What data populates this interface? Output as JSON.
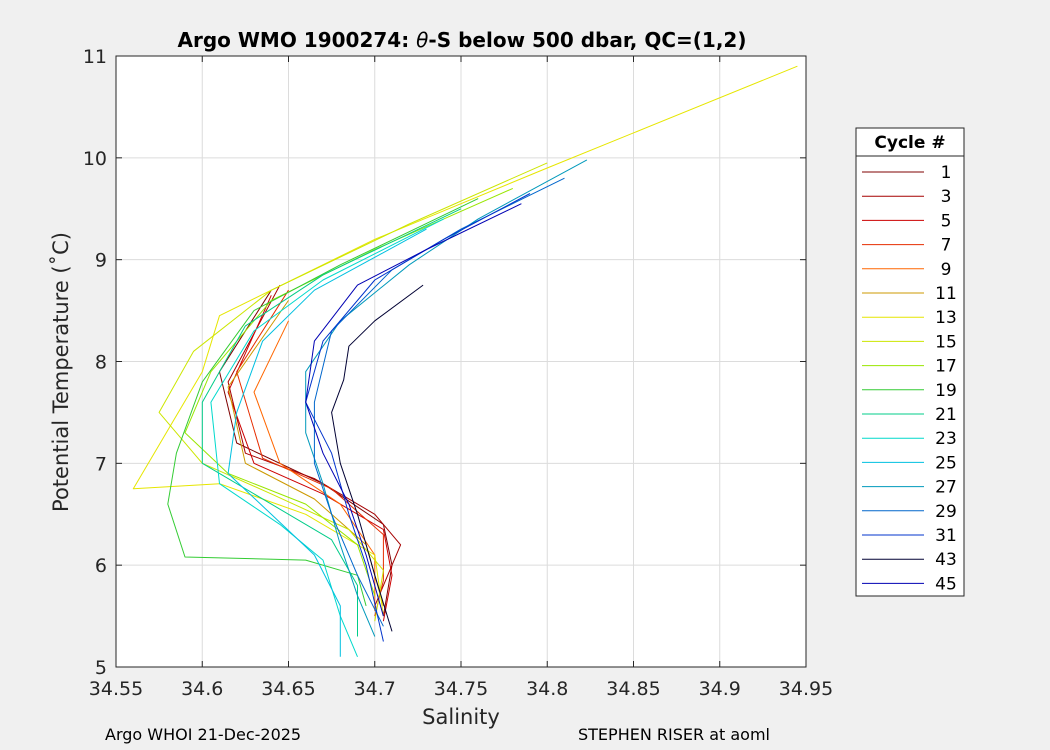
{
  "title_prefix": "Argo WMO 1900274: ",
  "title_symbol": "θ",
  "title_suffix": "-S below 500 dbar,  QC=(1,2)",
  "footer_left": "Argo WHOI 21-Dec-2025",
  "footer_right": "STEPHEN RISER at aoml",
  "chart_data": {
    "type": "line",
    "title": "Argo WMO 1900274: θ-S below 500 dbar,  QC=(1,2)",
    "xlabel": "Salinity",
    "ylabel": "Potential Temperature (˚C)",
    "xlim": [
      34.55,
      34.95
    ],
    "ylim": [
      5,
      11
    ],
    "xticks": [
      "34.55",
      "34.6",
      "34.65",
      "34.7",
      "34.75",
      "34.8",
      "34.85",
      "34.9",
      "34.95"
    ],
    "yticks": [
      "5",
      "6",
      "7",
      "8",
      "9",
      "10",
      "11"
    ],
    "grid": true,
    "legend": {
      "title": "Cycle #",
      "placement": "right"
    },
    "series": [
      {
        "name": "1",
        "color": "#7f0000",
        "points": [
          [
            34.64,
            8.7
          ],
          [
            34.61,
            7.9
          ],
          [
            34.62,
            7.2
          ],
          [
            34.67,
            6.8
          ],
          [
            34.705,
            6.4
          ],
          [
            34.71,
            6.0
          ],
          [
            34.705,
            5.5
          ]
        ]
      },
      {
        "name": "3",
        "color": "#a60000",
        "points": [
          [
            34.645,
            8.75
          ],
          [
            34.615,
            7.8
          ],
          [
            34.625,
            7.1
          ],
          [
            34.665,
            6.85
          ],
          [
            34.7,
            6.5
          ],
          [
            34.715,
            6.2
          ],
          [
            34.7,
            5.6
          ]
        ]
      },
      {
        "name": "5",
        "color": "#cc0000",
        "points": [
          [
            34.64,
            8.65
          ],
          [
            34.615,
            7.7
          ],
          [
            34.63,
            7.0
          ],
          [
            34.67,
            6.7
          ],
          [
            34.705,
            6.35
          ],
          [
            34.71,
            5.9
          ],
          [
            34.705,
            5.45
          ]
        ]
      },
      {
        "name": "7",
        "color": "#e62d00",
        "points": [
          [
            34.65,
            8.7
          ],
          [
            34.62,
            7.9
          ],
          [
            34.635,
            7.05
          ],
          [
            34.675,
            6.75
          ],
          [
            34.705,
            6.3
          ],
          [
            34.705,
            5.85
          ],
          [
            34.7,
            5.5
          ]
        ]
      },
      {
        "name": "9",
        "color": "#ff6600",
        "points": [
          [
            34.65,
            8.4
          ],
          [
            34.63,
            7.7
          ],
          [
            34.645,
            7.0
          ],
          [
            34.68,
            6.6
          ],
          [
            34.7,
            6.1
          ],
          [
            34.7,
            5.55
          ]
        ]
      },
      {
        "name": "11",
        "color": "#cc9900",
        "points": [
          [
            34.65,
            8.6
          ],
          [
            34.615,
            7.75
          ],
          [
            34.625,
            7.0
          ],
          [
            34.665,
            6.65
          ],
          [
            34.695,
            6.2
          ],
          [
            34.705,
            5.6
          ]
        ]
      },
      {
        "name": "13",
        "color": "#e6e600",
        "points": [
          [
            34.945,
            10.9
          ],
          [
            34.8,
            9.9
          ],
          [
            34.7,
            9.2
          ],
          [
            34.61,
            8.45
          ],
          [
            34.6,
            7.9
          ],
          [
            34.56,
            6.75
          ],
          [
            34.61,
            6.8
          ],
          [
            34.66,
            6.5
          ],
          [
            34.7,
            6.1
          ],
          [
            34.705,
            5.5
          ]
        ]
      },
      {
        "name": "15",
        "color": "#cce600",
        "points": [
          [
            34.8,
            9.95
          ],
          [
            34.72,
            9.35
          ],
          [
            34.64,
            8.7
          ],
          [
            34.595,
            8.1
          ],
          [
            34.575,
            7.5
          ],
          [
            34.6,
            7.0
          ],
          [
            34.64,
            6.7
          ],
          [
            34.685,
            6.35
          ],
          [
            34.705,
            5.95
          ],
          [
            34.7,
            5.45
          ]
        ]
      },
      {
        "name": "17",
        "color": "#99e600",
        "points": [
          [
            34.78,
            9.7
          ],
          [
            34.7,
            9.1
          ],
          [
            34.64,
            8.6
          ],
          [
            34.605,
            7.9
          ],
          [
            34.59,
            7.3
          ],
          [
            34.615,
            6.9
          ],
          [
            34.66,
            6.6
          ],
          [
            34.69,
            6.2
          ],
          [
            34.7,
            5.7
          ]
        ]
      },
      {
        "name": "19",
        "color": "#33cc33",
        "points": [
          [
            34.76,
            9.6
          ],
          [
            34.68,
            8.95
          ],
          [
            34.63,
            8.5
          ],
          [
            34.6,
            7.8
          ],
          [
            34.585,
            7.1
          ],
          [
            34.58,
            6.6
          ],
          [
            34.59,
            6.08
          ],
          [
            34.66,
            6.05
          ],
          [
            34.69,
            5.9
          ],
          [
            34.695,
            5.6
          ]
        ]
      },
      {
        "name": "21",
        "color": "#00cc88",
        "points": [
          [
            34.75,
            9.5
          ],
          [
            34.67,
            8.85
          ],
          [
            34.625,
            8.35
          ],
          [
            34.6,
            7.6
          ],
          [
            34.6,
            7.0
          ],
          [
            34.64,
            6.6
          ],
          [
            34.675,
            6.25
          ],
          [
            34.69,
            5.8
          ],
          [
            34.69,
            5.3
          ]
        ]
      },
      {
        "name": "23",
        "color": "#00d9cc",
        "points": [
          [
            34.74,
            9.4
          ],
          [
            34.67,
            8.8
          ],
          [
            34.63,
            8.3
          ],
          [
            34.605,
            7.6
          ],
          [
            34.61,
            6.8
          ],
          [
            34.645,
            6.4
          ],
          [
            34.67,
            6.05
          ],
          [
            34.68,
            5.5
          ],
          [
            34.69,
            5.1
          ]
        ]
      },
      {
        "name": "25",
        "color": "#00c0e0",
        "points": [
          [
            34.73,
            9.3
          ],
          [
            34.665,
            8.7
          ],
          [
            34.635,
            8.2
          ],
          [
            34.62,
            7.5
          ],
          [
            34.615,
            6.9
          ],
          [
            34.64,
            6.5
          ],
          [
            34.665,
            6.1
          ],
          [
            34.68,
            5.6
          ],
          [
            34.68,
            5.1
          ]
        ]
      },
      {
        "name": "27",
        "color": "#0099bb",
        "points": [
          [
            34.823,
            9.98
          ],
          [
            34.76,
            9.4
          ],
          [
            34.72,
            8.95
          ],
          [
            34.68,
            8.4
          ],
          [
            34.66,
            7.9
          ],
          [
            34.66,
            7.3
          ],
          [
            34.67,
            6.8
          ],
          [
            34.68,
            6.2
          ],
          [
            34.69,
            5.7
          ],
          [
            34.7,
            5.3
          ]
        ]
      },
      {
        "name": "29",
        "color": "#0066cc",
        "points": [
          [
            34.81,
            9.8
          ],
          [
            34.75,
            9.3
          ],
          [
            34.71,
            8.9
          ],
          [
            34.675,
            8.3
          ],
          [
            34.665,
            7.6
          ],
          [
            34.665,
            7.0
          ],
          [
            34.675,
            6.5
          ],
          [
            34.69,
            5.9
          ],
          [
            34.705,
            5.4
          ]
        ]
      },
      {
        "name": "31",
        "color": "#0033cc",
        "points": [
          [
            34.79,
            9.65
          ],
          [
            34.74,
            9.2
          ],
          [
            34.7,
            8.8
          ],
          [
            34.67,
            8.2
          ],
          [
            34.66,
            7.6
          ],
          [
            34.675,
            7.1
          ],
          [
            34.685,
            6.5
          ],
          [
            34.695,
            6.0
          ],
          [
            34.705,
            5.25
          ]
        ]
      },
      {
        "name": "43",
        "color": "#000033",
        "points": [
          [
            34.728,
            8.75
          ],
          [
            34.7,
            8.4
          ],
          [
            34.685,
            8.15
          ],
          [
            34.682,
            7.82
          ],
          [
            34.675,
            7.5
          ],
          [
            34.68,
            7.0
          ],
          [
            34.69,
            6.5
          ],
          [
            34.7,
            5.9
          ],
          [
            34.71,
            5.35
          ]
        ]
      },
      {
        "name": "45",
        "color": "#0000b3",
        "points": [
          [
            34.785,
            9.55
          ],
          [
            34.73,
            9.1
          ],
          [
            34.69,
            8.75
          ],
          [
            34.665,
            8.2
          ],
          [
            34.66,
            7.6
          ],
          [
            34.67,
            7.1
          ],
          [
            34.685,
            6.6
          ],
          [
            34.695,
            6.1
          ],
          [
            34.705,
            5.5
          ]
        ]
      }
    ]
  }
}
